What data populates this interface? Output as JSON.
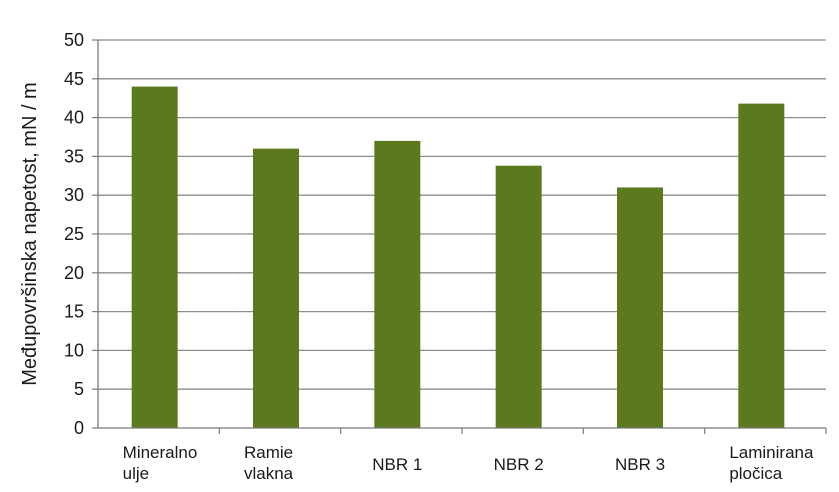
{
  "chart_data": {
    "type": "bar",
    "title": "",
    "xlabel": "",
    "ylabel": "Međupovršinska napetost, mN / m",
    "ylim": [
      0,
      50
    ],
    "yticks": [
      0,
      5,
      10,
      15,
      20,
      25,
      30,
      35,
      40,
      45,
      50
    ],
    "grid": true,
    "legend": "none",
    "categories": [
      [
        "Mineralno",
        "ulje"
      ],
      [
        "Ramie",
        "vlakna"
      ],
      [
        "NBR 1"
      ],
      [
        "NBR 2"
      ],
      [
        "NBR 3"
      ],
      [
        "Laminirana",
        "pločica"
      ]
    ],
    "values": [
      44,
      36,
      37,
      33.8,
      31,
      41.8
    ],
    "colors": {
      "bar": "#5b7a1e",
      "grid": "#8c8c8c",
      "axis": "#7a7a7a",
      "text": "#1a1a1a"
    }
  }
}
